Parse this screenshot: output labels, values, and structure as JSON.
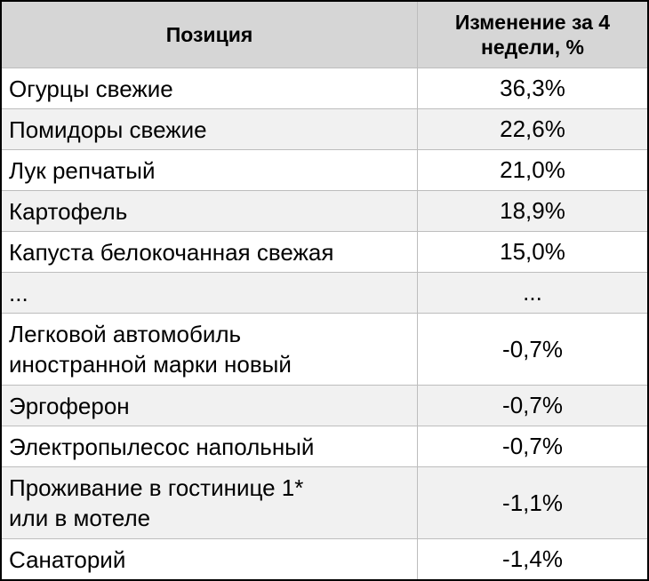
{
  "chart_data": {
    "type": "table",
    "columns": [
      "Позиция",
      "Изменение за 4 недели, %"
    ],
    "rows": [
      {
        "item": "Огурцы свежие",
        "change": "36,3%"
      },
      {
        "item": "Помидоры свежие",
        "change": "22,6%"
      },
      {
        "item": "Лук репчатый",
        "change": "21,0%"
      },
      {
        "item": "Картофель",
        "change": "18,9%"
      },
      {
        "item": "Капуста белокочанная свежая",
        "change": "15,0%"
      },
      {
        "item": "...",
        "change": "..."
      },
      {
        "item_lines": [
          "Легковой автомобиль",
          "иностранной марки новый"
        ],
        "item": "Легковой автомобиль иностранной марки новый",
        "change": "-0,7%"
      },
      {
        "item": "Эргоферон",
        "change": "-0,7%"
      },
      {
        "item": "Электропылесос напольный",
        "change": "-0,7%"
      },
      {
        "item_lines": [
          "Проживание в гостинице 1*",
          "или в мотеле"
        ],
        "item": "Проживание в гостинице 1* или в мотеле",
        "change": "-1,1%"
      },
      {
        "item": "Санаторий",
        "change": "-1,4%"
      }
    ]
  },
  "header": {
    "col1": "Позиция",
    "col2_line1": "Изменение за 4",
    "col2_line2": "недели, %"
  }
}
